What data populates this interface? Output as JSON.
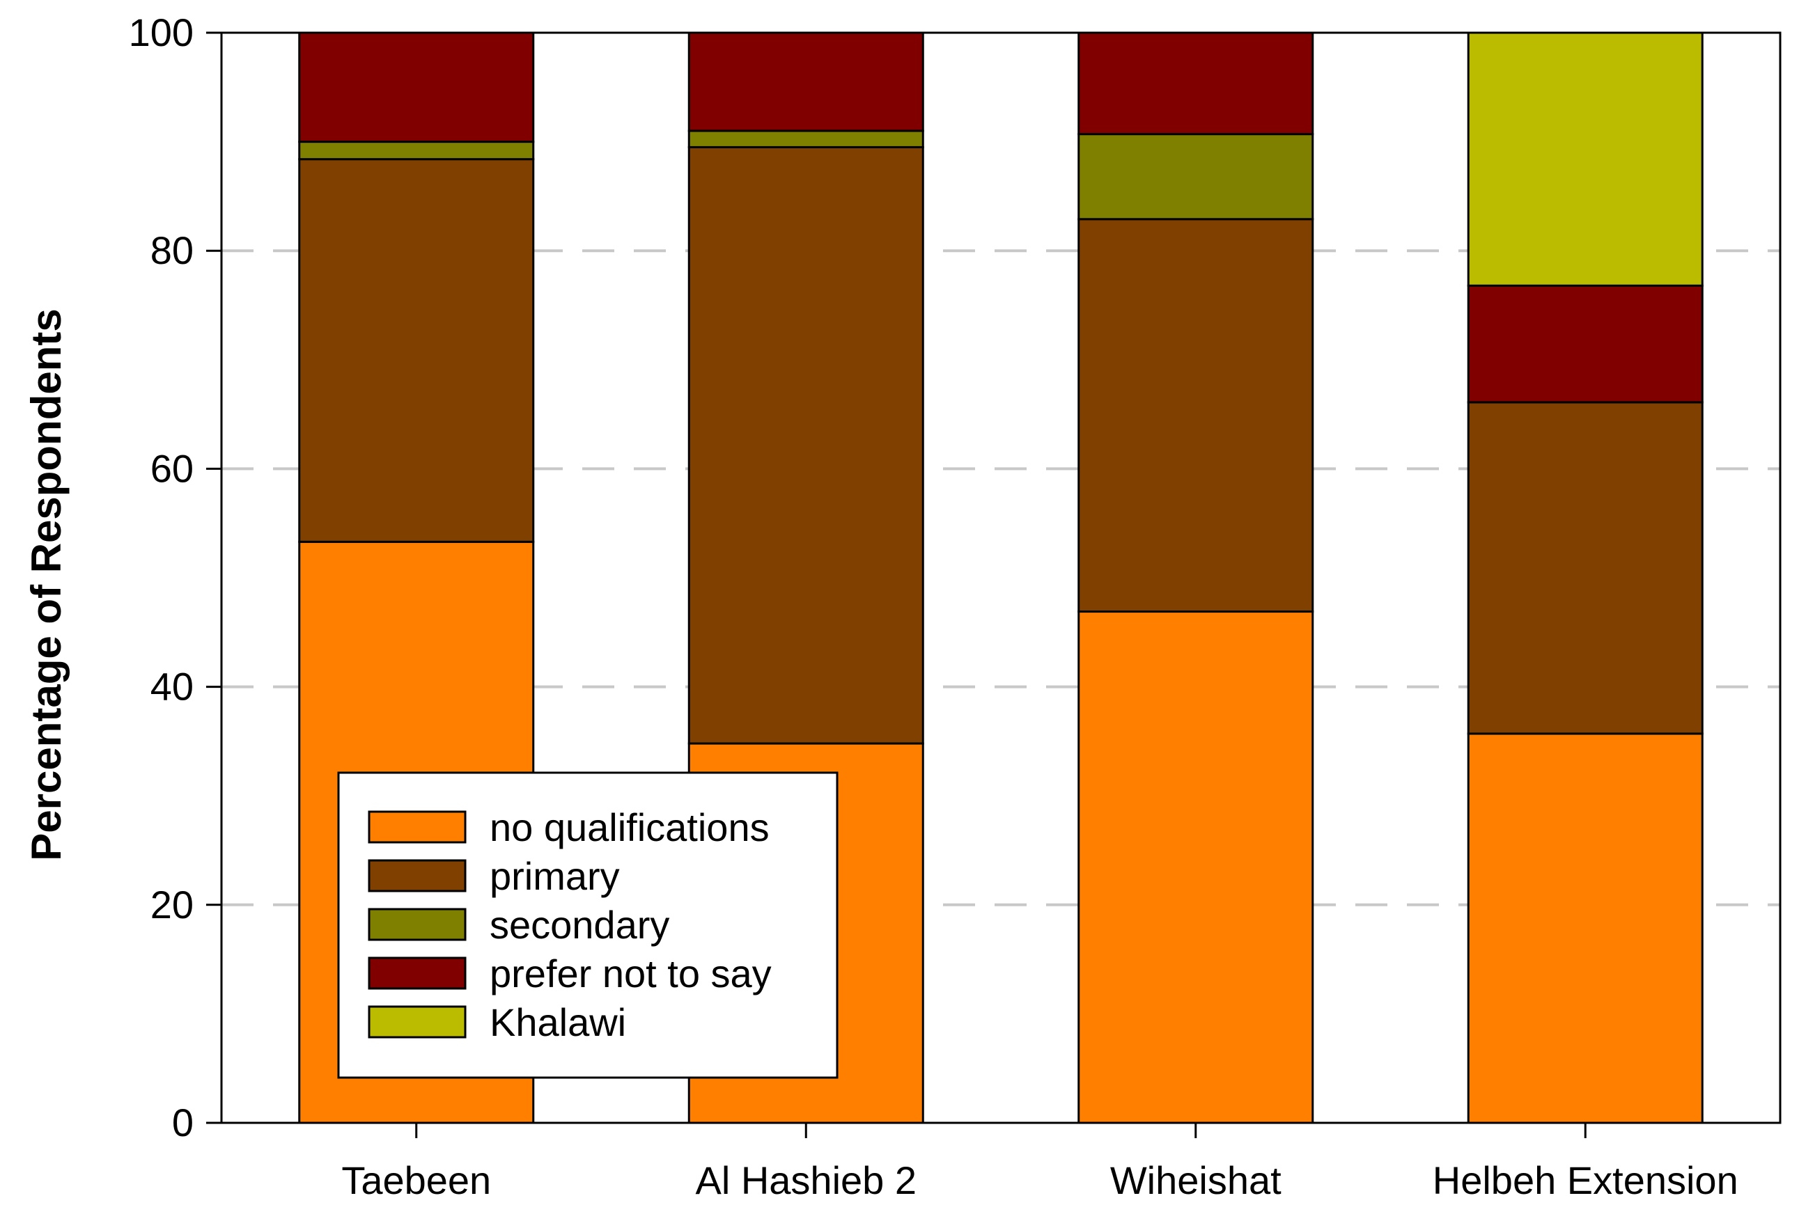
{
  "chart_data": {
    "type": "bar",
    "stacked": true,
    "title": "",
    "xlabel": "",
    "ylabel": "Percentage of Respondents",
    "ylim": [
      0,
      100
    ],
    "yticks": [
      0,
      20,
      40,
      60,
      80,
      100
    ],
    "grid": "horizontal dashed",
    "legend_position": "bottom-left",
    "categories": [
      "Taebeen",
      "Al Hashieb 2",
      "Wiheishat",
      "Helbeh Extension"
    ],
    "series": [
      {
        "name": "no qualifications",
        "color": "#FF8000",
        "values": [
          53.3,
          34.8,
          46.9,
          35.7
        ]
      },
      {
        "name": "primary",
        "color": "#804000",
        "values": [
          35.1,
          54.7,
          36.0,
          30.4
        ]
      },
      {
        "name": "secondary",
        "color": "#808000",
        "values": [
          1.6,
          1.5,
          7.8,
          0
        ]
      },
      {
        "name": "prefer not to say",
        "color": "#800000",
        "values": [
          10.0,
          9.0,
          9.3,
          10.7
        ]
      },
      {
        "name": "Khalawi",
        "color": "#BBBB00",
        "values": [
          0,
          0,
          0,
          23.2
        ]
      }
    ]
  }
}
